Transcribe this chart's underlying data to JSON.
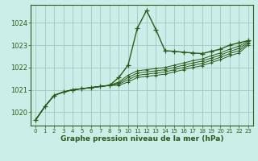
{
  "background_color": "#cceee8",
  "grid_color": "#9dc8c0",
  "line_color": "#2d5a1b",
  "xlabel": "Graphe pression niveau de la mer (hPa)",
  "xlim": [
    -0.5,
    23.5
  ],
  "ylim": [
    1019.4,
    1024.8
  ],
  "yticks": [
    1020,
    1021,
    1022,
    1023,
    1024
  ],
  "xticks": [
    0,
    1,
    2,
    3,
    4,
    5,
    6,
    7,
    8,
    9,
    10,
    11,
    12,
    13,
    14,
    15,
    16,
    17,
    18,
    19,
    20,
    21,
    22,
    23
  ],
  "series": [
    [
      1019.65,
      1020.25,
      1020.75,
      1020.9,
      1021.0,
      1021.05,
      1021.1,
      1021.15,
      1021.2,
      1021.55,
      1022.1,
      1023.75,
      1024.55,
      1023.7,
      1022.75,
      1022.72,
      1022.68,
      1022.65,
      1022.62,
      1022.72,
      1022.82,
      1023.0,
      1023.1,
      1023.2
    ],
    [
      1019.65,
      1020.25,
      1020.75,
      1020.9,
      1021.0,
      1021.05,
      1021.1,
      1021.15,
      1021.2,
      1021.35,
      1021.65,
      1021.85,
      1021.9,
      1021.95,
      1022.0,
      1022.1,
      1022.2,
      1022.3,
      1022.38,
      1022.52,
      1022.65,
      1022.82,
      1022.95,
      1023.18
    ],
    [
      1019.65,
      1020.25,
      1020.75,
      1020.9,
      1021.0,
      1021.05,
      1021.1,
      1021.15,
      1021.2,
      1021.3,
      1021.55,
      1021.75,
      1021.8,
      1021.85,
      1021.9,
      1022.0,
      1022.1,
      1022.2,
      1022.28,
      1022.42,
      1022.55,
      1022.72,
      1022.85,
      1023.12
    ],
    [
      1019.65,
      1020.25,
      1020.75,
      1020.9,
      1021.0,
      1021.05,
      1021.1,
      1021.15,
      1021.2,
      1021.25,
      1021.45,
      1021.65,
      1021.7,
      1021.75,
      1021.8,
      1021.9,
      1022.0,
      1022.1,
      1022.18,
      1022.32,
      1022.45,
      1022.62,
      1022.75,
      1023.06
    ],
    [
      1019.65,
      1020.25,
      1020.75,
      1020.9,
      1021.0,
      1021.05,
      1021.1,
      1021.15,
      1021.2,
      1021.2,
      1021.35,
      1021.55,
      1021.6,
      1021.65,
      1021.7,
      1021.8,
      1021.9,
      1022.0,
      1022.08,
      1022.22,
      1022.35,
      1022.52,
      1022.65,
      1023.0
    ]
  ]
}
